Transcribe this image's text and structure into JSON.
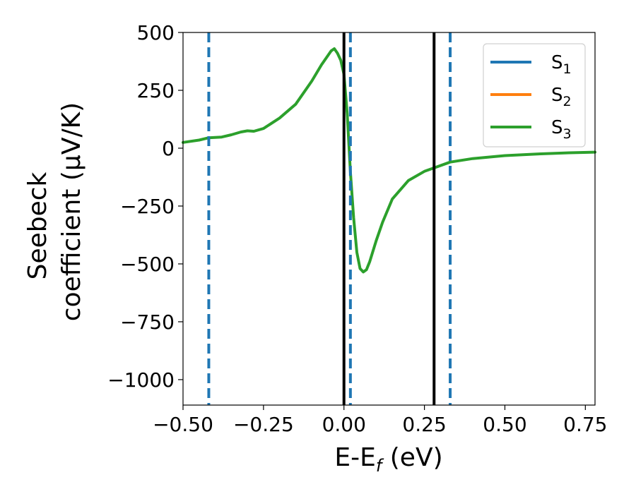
{
  "chart_data": {
    "type": "line",
    "xlabel": {
      "main": "E-E",
      "sub": "f",
      "suffix": " (eV)"
    },
    "ylabel": {
      "line1": "Seebeck",
      "line2": "coefficient  (μV/K)"
    },
    "xlim": [
      -0.5,
      0.78
    ],
    "ylim": [
      -1110,
      500
    ],
    "x_ticks": [
      -0.5,
      -0.25,
      0.0,
      0.25,
      0.5,
      0.75
    ],
    "x_tick_labels": [
      "−0.50",
      "−0.25",
      "0.00",
      "0.25",
      "0.50",
      "0.75"
    ],
    "y_ticks": [
      500,
      250,
      0,
      -250,
      -500,
      -750,
      -1000
    ],
    "y_tick_labels": [
      "500",
      "250",
      "0",
      "−250",
      "−500",
      "−750",
      "−1000"
    ],
    "legend_position": "top-right",
    "series": [
      {
        "name": "S",
        "sub": "1",
        "color": "#1f77b4",
        "values": []
      },
      {
        "name": "S",
        "sub": "2",
        "color": "#ff7f0e",
        "values": []
      },
      {
        "name": "S",
        "sub": "3",
        "color": "#2ca02c",
        "x": [
          -0.5,
          -0.45,
          -0.42,
          -0.38,
          -0.35,
          -0.32,
          -0.3,
          -0.28,
          -0.25,
          -0.2,
          -0.15,
          -0.1,
          -0.07,
          -0.04,
          -0.03,
          -0.02,
          -0.01,
          0.0,
          0.01,
          0.02,
          0.03,
          0.04,
          0.05,
          0.06,
          0.07,
          0.08,
          0.1,
          0.12,
          0.15,
          0.2,
          0.25,
          0.28,
          0.33,
          0.4,
          0.5,
          0.6,
          0.7,
          0.78
        ],
        "values": [
          25,
          35,
          45,
          48,
          58,
          70,
          75,
          73,
          85,
          130,
          190,
          290,
          360,
          420,
          430,
          410,
          380,
          320,
          150,
          -100,
          -300,
          -450,
          -520,
          -535,
          -525,
          -490,
          -400,
          -320,
          -220,
          -140,
          -100,
          -85,
          -60,
          -45,
          -32,
          -25,
          -20,
          -17
        ]
      }
    ],
    "vlines_solid": [
      0.0,
      0.28
    ],
    "vlines_dashed": [
      -0.42,
      0.02,
      0.33
    ],
    "vline_solid_color": "#000000",
    "vline_dashed_color": "#1f77b4"
  }
}
